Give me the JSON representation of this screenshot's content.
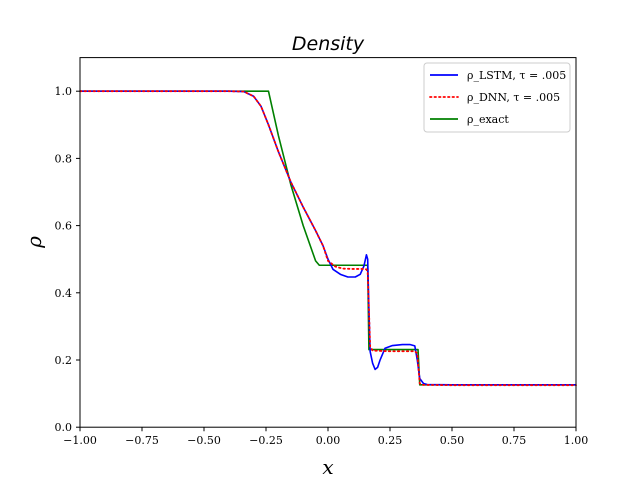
{
  "chart_data": {
    "type": "line",
    "title": "Density",
    "xlabel": "x",
    "ylabel": "ρ",
    "xlim": [
      -1.0,
      1.0
    ],
    "ylim": [
      0.0,
      1.1
    ],
    "x_ticks": [
      "−1.00",
      "−0.75",
      "−0.50",
      "−0.25",
      "0.00",
      "0.25",
      "0.50",
      "0.75",
      "1.00"
    ],
    "y_ticks": [
      "0.0",
      "0.2",
      "0.4",
      "0.6",
      "0.8",
      "1.0"
    ],
    "grid": false,
    "legend_position": "top-right",
    "series": [
      {
        "name": "ρ_LSTM, τ = .005",
        "color": "#0000ff",
        "style": "solid",
        "points": [
          [
            -1.0,
            1.0
          ],
          [
            -0.6,
            1.0
          ],
          [
            -0.4,
            1.0
          ],
          [
            -0.34,
            0.999
          ],
          [
            -0.3,
            0.985
          ],
          [
            -0.27,
            0.955
          ],
          [
            -0.24,
            0.9
          ],
          [
            -0.2,
            0.82
          ],
          [
            -0.15,
            0.73
          ],
          [
            -0.1,
            0.655
          ],
          [
            -0.05,
            0.585
          ],
          [
            -0.02,
            0.54
          ],
          [
            0.0,
            0.5
          ],
          [
            0.02,
            0.47
          ],
          [
            0.05,
            0.455
          ],
          [
            0.08,
            0.447
          ],
          [
            0.11,
            0.447
          ],
          [
            0.13,
            0.455
          ],
          [
            0.145,
            0.48
          ],
          [
            0.155,
            0.513
          ],
          [
            0.16,
            0.5
          ],
          [
            0.165,
            0.35
          ],
          [
            0.17,
            0.225
          ],
          [
            0.18,
            0.19
          ],
          [
            0.19,
            0.172
          ],
          [
            0.2,
            0.178
          ],
          [
            0.21,
            0.2
          ],
          [
            0.23,
            0.235
          ],
          [
            0.26,
            0.243
          ],
          [
            0.3,
            0.246
          ],
          [
            0.33,
            0.246
          ],
          [
            0.35,
            0.242
          ],
          [
            0.36,
            0.2
          ],
          [
            0.37,
            0.145
          ],
          [
            0.385,
            0.13
          ],
          [
            0.4,
            0.127
          ],
          [
            0.5,
            0.126
          ],
          [
            1.0,
            0.126
          ]
        ]
      },
      {
        "name": "ρ_DNN, τ = .005",
        "color": "#ff0000",
        "style": "dotted",
        "points": [
          [
            -1.0,
            1.0
          ],
          [
            -0.6,
            1.0
          ],
          [
            -0.4,
            1.0
          ],
          [
            -0.34,
            0.999
          ],
          [
            -0.3,
            0.985
          ],
          [
            -0.27,
            0.955
          ],
          [
            -0.24,
            0.9
          ],
          [
            -0.2,
            0.82
          ],
          [
            -0.15,
            0.73
          ],
          [
            -0.1,
            0.655
          ],
          [
            -0.05,
            0.585
          ],
          [
            -0.02,
            0.54
          ],
          [
            0.0,
            0.495
          ],
          [
            0.03,
            0.478
          ],
          [
            0.06,
            0.472
          ],
          [
            0.1,
            0.471
          ],
          [
            0.14,
            0.471
          ],
          [
            0.155,
            0.47
          ],
          [
            0.16,
            0.46
          ],
          [
            0.165,
            0.35
          ],
          [
            0.17,
            0.24
          ],
          [
            0.18,
            0.228
          ],
          [
            0.25,
            0.226
          ],
          [
            0.3,
            0.226
          ],
          [
            0.35,
            0.226
          ],
          [
            0.36,
            0.22
          ],
          [
            0.37,
            0.13
          ],
          [
            0.38,
            0.126
          ],
          [
            0.5,
            0.125
          ],
          [
            1.0,
            0.125
          ]
        ]
      },
      {
        "name": "ρ_exact",
        "color": "#008000",
        "style": "solid",
        "points": [
          [
            -1.0,
            1.0
          ],
          [
            -0.24,
            1.0
          ],
          [
            -0.2,
            0.868
          ],
          [
            -0.15,
            0.722
          ],
          [
            -0.1,
            0.6
          ],
          [
            -0.05,
            0.495
          ],
          [
            -0.035,
            0.482
          ],
          [
            0.16,
            0.482
          ],
          [
            0.165,
            0.231
          ],
          [
            0.363,
            0.231
          ],
          [
            0.37,
            0.126
          ],
          [
            1.0,
            0.126
          ]
        ]
      }
    ]
  }
}
